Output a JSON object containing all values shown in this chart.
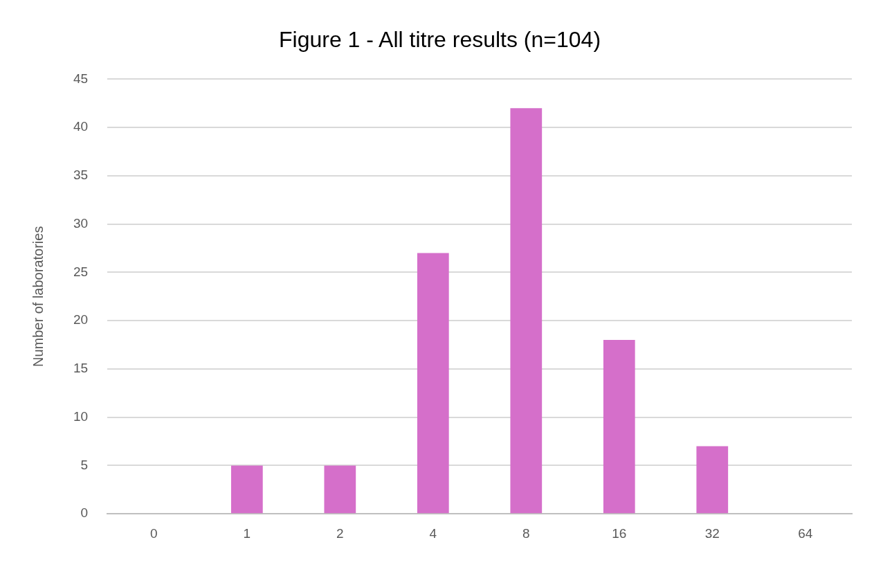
{
  "chart_data": {
    "type": "bar",
    "title": "Figure 1 - All titre results (n=104)",
    "ylabel": "Number of laboratories",
    "categories": [
      "0",
      "1",
      "2",
      "4",
      "8",
      "16",
      "32",
      "64"
    ],
    "values": [
      0,
      5,
      5,
      27,
      42,
      18,
      7,
      0
    ],
    "color": "#d56fca",
    "ylim": [
      0,
      45
    ],
    "yticks": [
      0,
      5,
      10,
      15,
      20,
      25,
      30,
      35,
      40,
      45
    ],
    "grid": "y",
    "legend": false
  }
}
